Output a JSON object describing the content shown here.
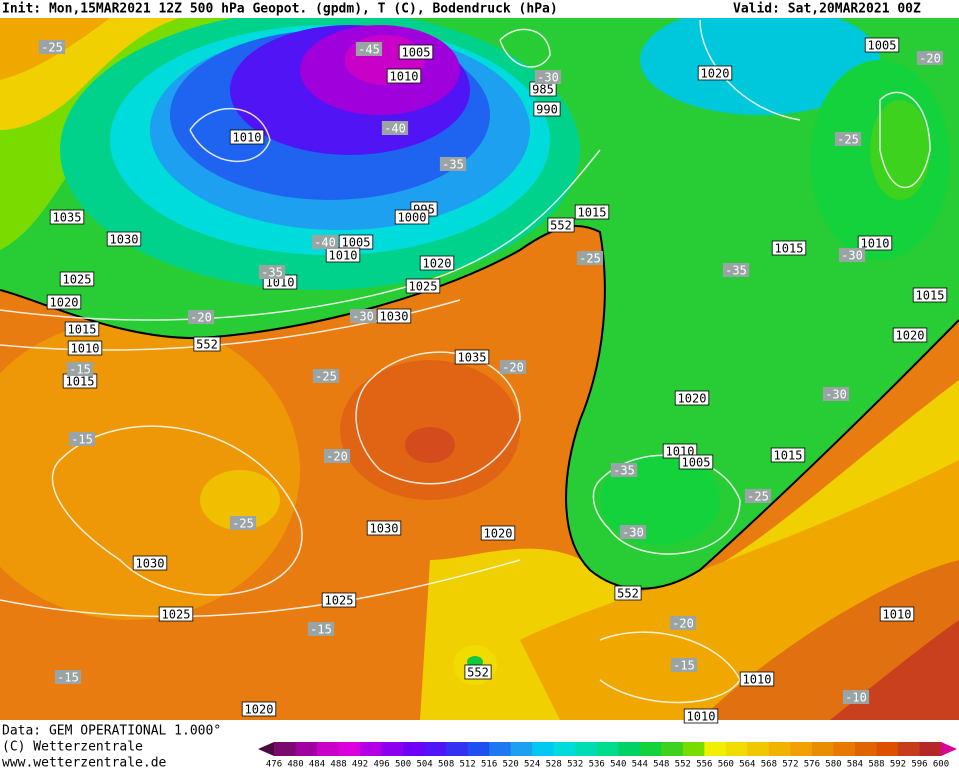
{
  "header": {
    "init": "Init: Mon,15MAR2021 12Z 500 hPa Geopot. (gpdm), T (C), Bodendruck (hPa)",
    "valid": "Valid: Sat,20MAR2021 00Z"
  },
  "footer": {
    "data": "Data: GEM OPERATIONAL 1.000°",
    "copyright": "(C) Wetterzentrale",
    "url": "www.wetterzentrale.de"
  },
  "colorbar": {
    "labels": [
      "476",
      "480",
      "484",
      "488",
      "492",
      "496",
      "500",
      "504",
      "508",
      "512",
      "516",
      "520",
      "524",
      "528",
      "532",
      "536",
      "540",
      "544",
      "548",
      "552",
      "556",
      "560",
      "564",
      "568",
      "572",
      "576",
      "580",
      "584",
      "588",
      "592",
      "596",
      "600"
    ]
  },
  "isobar_labels": [
    "1005",
    "1010",
    "985",
    "990",
    "1020",
    "1005",
    "1010",
    "995",
    "1000",
    "1015",
    "552",
    "1035",
    "1030",
    "1005",
    "1010",
    "1015",
    "1010",
    "1020",
    "1010",
    "1025",
    "1025",
    "1020",
    "1015",
    "1030",
    "1015",
    "552",
    "1020",
    "1010",
    "1035",
    "1015",
    "1020",
    "1010",
    "1005",
    "1015",
    "1030",
    "1020",
    "1030",
    "552",
    "1025",
    "1025",
    "1010",
    "552",
    "1010",
    "1020",
    "1010"
  ],
  "temperature_labels": [
    "-25",
    "-45",
    "-30",
    "-20",
    "-40",
    "-25",
    "-35",
    "-40",
    "-30",
    "-25",
    "-35",
    "-35",
    "-20",
    "-30",
    "-20",
    "-15",
    "-25",
    "-30",
    "-15",
    "-20",
    "-35",
    "-25",
    "-25",
    "-30",
    "-15",
    "-20",
    "-15",
    "-15",
    "-10"
  ]
}
